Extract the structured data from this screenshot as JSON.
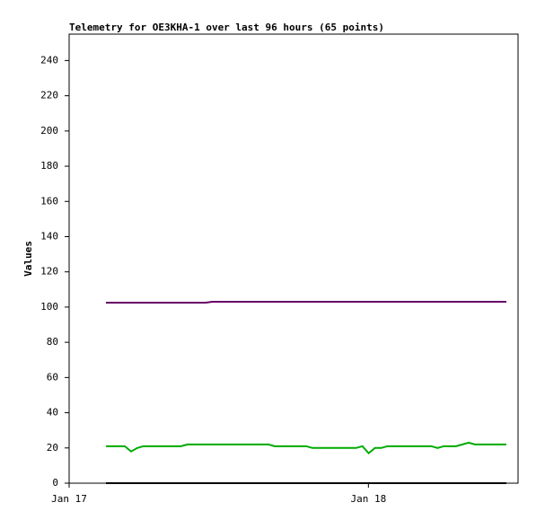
{
  "chart_data": {
    "type": "line",
    "title": "Telemetry for OE3KHA-1 over last 96 hours (65 points)",
    "y_label": "Values",
    "xlim": [
      0,
      1.5
    ],
    "xticks": [
      {
        "value": 0,
        "label": "Jan 17"
      },
      {
        "value": 1,
        "label": "Jan 18"
      }
    ],
    "ylim": [
      0,
      255
    ],
    "yticks": [
      0,
      20,
      40,
      60,
      80,
      100,
      120,
      140,
      160,
      180,
      200,
      220,
      240
    ],
    "x": [
      0.123,
      0.144,
      0.165,
      0.186,
      0.207,
      0.228,
      0.248,
      0.269,
      0.29,
      0.311,
      0.332,
      0.353,
      0.374,
      0.395,
      0.416,
      0.437,
      0.457,
      0.478,
      0.499,
      0.52,
      0.541,
      0.562,
      0.583,
      0.604,
      0.625,
      0.646,
      0.666,
      0.687,
      0.708,
      0.729,
      0.75,
      0.771,
      0.792,
      0.813,
      0.834,
      0.855,
      0.875,
      0.896,
      0.917,
      0.938,
      0.959,
      0.98,
      1.001,
      1.022,
      1.043,
      1.064,
      1.084,
      1.105,
      1.126,
      1.147,
      1.168,
      1.189,
      1.21,
      1.231,
      1.252,
      1.273,
      1.293,
      1.314,
      1.335,
      1.356,
      1.377,
      1.398,
      1.419,
      1.44,
      1.461
    ],
    "series": [
      {
        "color": "#660066",
        "values": [
          102.5,
          102.5,
          102.5,
          102.5,
          102.5,
          102.5,
          102.5,
          102.5,
          102.5,
          102.5,
          102.5,
          102.5,
          102.5,
          102.5,
          102.5,
          102.5,
          102.5,
          103,
          103,
          103,
          103,
          103,
          103,
          103,
          103,
          103,
          103,
          103,
          103,
          103,
          103,
          103,
          103,
          103,
          103,
          103,
          103,
          103,
          103,
          103,
          103,
          103,
          103,
          103,
          103,
          103,
          103,
          103,
          103,
          103,
          103,
          103,
          103,
          103,
          103,
          103,
          103,
          103,
          103,
          103,
          103,
          103,
          103,
          103,
          103
        ]
      },
      {
        "color": "#00aa00",
        "values": [
          21,
          21,
          21,
          21,
          18,
          20,
          21,
          21,
          21,
          21,
          21,
          21,
          21,
          22,
          22,
          22,
          22,
          22,
          22,
          22,
          22,
          22,
          22,
          22,
          22,
          22,
          22,
          21,
          21,
          21,
          21,
          21,
          21,
          20,
          20,
          20,
          20,
          20,
          20,
          20,
          20,
          21,
          17,
          20,
          20,
          21,
          21,
          21,
          21,
          21,
          21,
          21,
          21,
          20,
          21,
          21,
          21,
          22,
          23,
          22,
          22,
          22,
          22,
          22,
          22
        ]
      },
      {
        "color": "#000000",
        "values": [
          0,
          0,
          0,
          0,
          0,
          0,
          0,
          0,
          0,
          0,
          0,
          0,
          0,
          0,
          0,
          0,
          0,
          0,
          0,
          0,
          0,
          0,
          0,
          0,
          0,
          0,
          0,
          0,
          0,
          0,
          0,
          0,
          0,
          0,
          0,
          0,
          0,
          0,
          0,
          0,
          0,
          0,
          0,
          0,
          0,
          0,
          0,
          0,
          0,
          0,
          0,
          0,
          0,
          0,
          0,
          0,
          0,
          0,
          0,
          0,
          0,
          0,
          0,
          0,
          0
        ]
      }
    ]
  }
}
